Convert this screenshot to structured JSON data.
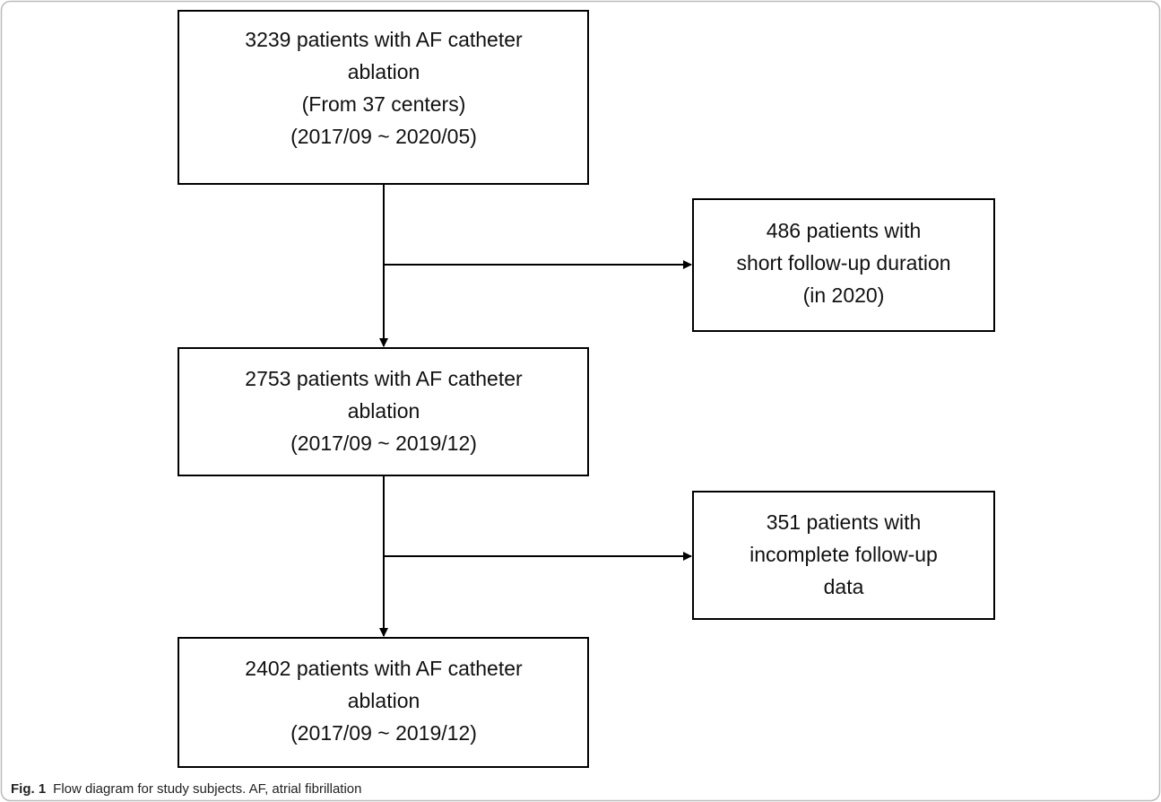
{
  "nodes": [
    {
      "lines": [
        "3239 patients with AF catheter",
        "ablation",
        "(From 37 centers)",
        "(2017/09 ~ 2020/05)"
      ]
    },
    {
      "lines": [
        "486 patients with",
        "short follow-up duration",
        "(in 2020)"
      ]
    },
    {
      "lines": [
        "2753 patients with AF catheter",
        "ablation",
        "(2017/09 ~ 2019/12)"
      ]
    },
    {
      "lines": [
        "351 patients with",
        "incomplete follow-up",
        "data"
      ]
    },
    {
      "lines": [
        "2402 patients with AF catheter",
        "ablation",
        "(2017/09 ~ 2019/12)"
      ]
    }
  ],
  "caption": {
    "label": "Fig. 1",
    "text": "Flow diagram for study subjects. AF, atrial fibrillation"
  }
}
